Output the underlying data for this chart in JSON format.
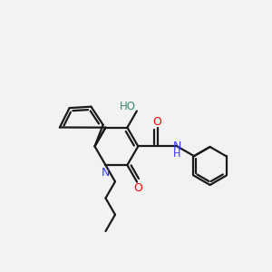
{
  "bg_color": "#f2f2f2",
  "bond_color": "#1a1a1a",
  "N_color": "#3333ff",
  "O_color": "#ff0000",
  "OH_color": "#3a8a6e",
  "line_width": 1.6,
  "figsize": [
    3.0,
    3.0
  ],
  "dpi": 100,
  "xlim": [
    0,
    10
  ],
  "ylim": [
    0,
    10
  ]
}
